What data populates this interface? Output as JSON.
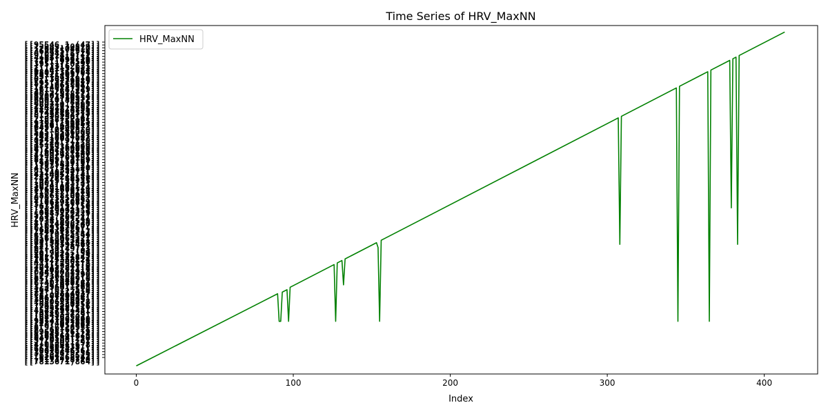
{
  "chart_data": {
    "type": "line",
    "title": "Time Series of HRV_MaxNN",
    "xlabel": "Index",
    "ylabel": "HRV_MaxNN",
    "xlim": [
      -20,
      434
    ],
    "x_ticks": [
      0,
      100,
      200,
      300,
      400
    ],
    "y_scale": "categorical (each point has its own overlapping tick label; labels unreadable)",
    "ylim": [
      -10,
      420
    ],
    "grid": false,
    "legend": "top-left",
    "colors": {
      "series": "#008000"
    },
    "series": [
      {
        "name": "HRV_MaxNN",
        "points": [
          [
            0,
            0
          ],
          [
            90,
            89
          ],
          [
            91,
            55
          ],
          [
            92,
            55
          ],
          [
            93,
            91
          ],
          [
            96,
            94
          ],
          [
            97,
            55
          ],
          [
            98,
            97
          ],
          [
            126,
            125
          ],
          [
            127,
            55
          ],
          [
            128,
            127
          ],
          [
            131,
            130
          ],
          [
            132,
            100
          ],
          [
            133,
            132
          ],
          [
            153,
            152
          ],
          [
            154,
            146
          ],
          [
            155,
            55
          ],
          [
            156,
            155
          ],
          [
            307,
            306
          ],
          [
            308,
            150
          ],
          [
            309,
            308
          ],
          [
            344,
            343
          ],
          [
            345,
            55
          ],
          [
            346,
            345
          ],
          [
            364,
            363
          ],
          [
            365,
            55
          ],
          [
            366,
            365
          ],
          [
            378,
            377
          ],
          [
            379,
            195
          ],
          [
            380,
            379
          ],
          [
            382,
            381
          ],
          [
            383,
            150
          ],
          [
            384,
            383
          ],
          [
            413,
            412
          ]
        ]
      }
    ]
  }
}
